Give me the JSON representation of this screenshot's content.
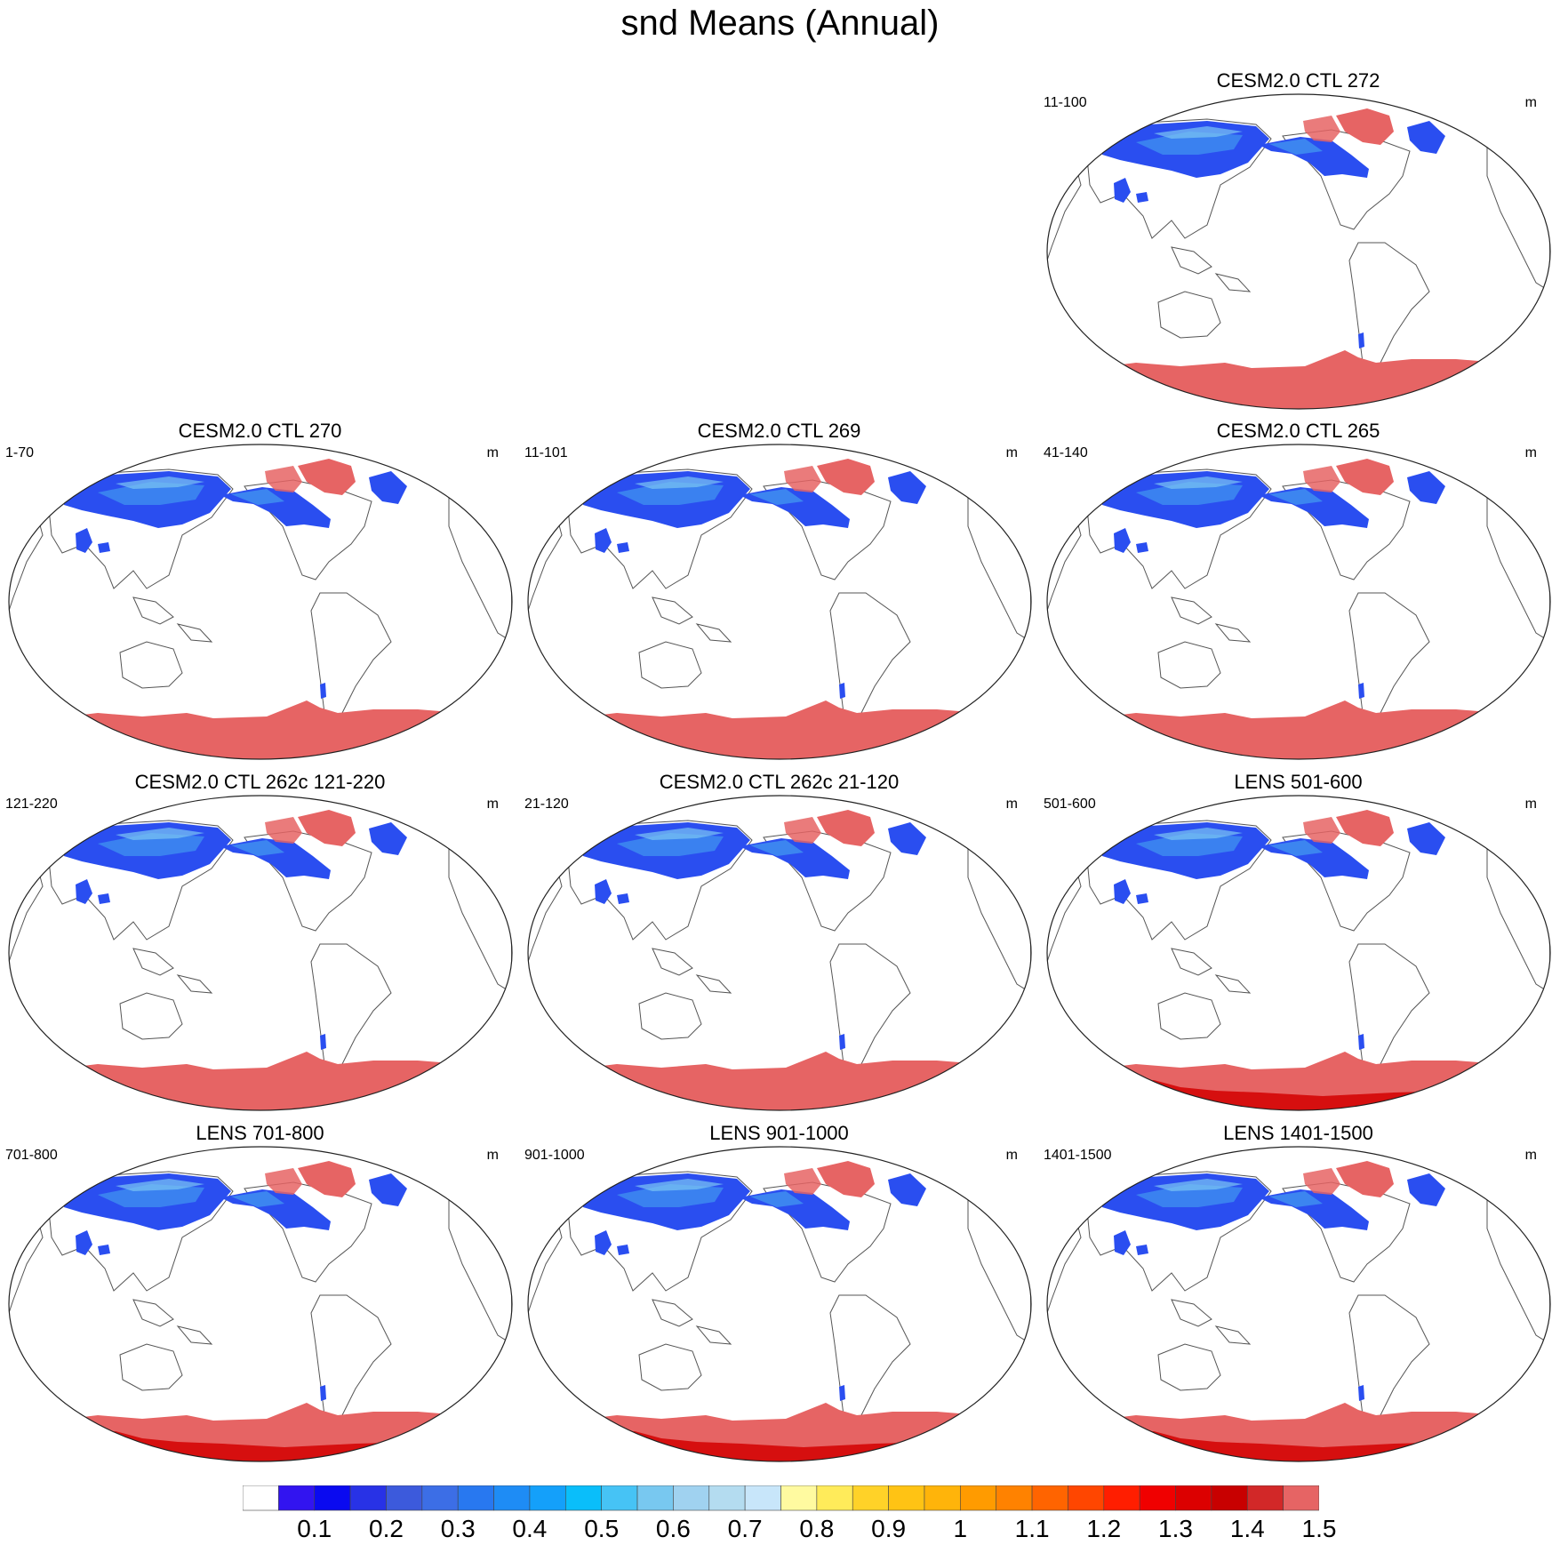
{
  "title": "snd Means (Annual)",
  "panels": [
    {
      "title": "CESM2.0 CTL 272",
      "left_label": "11-100",
      "right_label": "m",
      "antarctic": "uniform"
    },
    {
      "title": "CESM2.0 CTL 270",
      "left_label": "1-70",
      "right_label": "m",
      "antarctic": "uniform"
    },
    {
      "title": "CESM2.0 CTL 269",
      "left_label": "11-101",
      "right_label": "m",
      "antarctic": "uniform"
    },
    {
      "title": "CESM2.0 CTL 265",
      "left_label": "41-140",
      "right_label": "m",
      "antarctic": "uniform"
    },
    {
      "title": "CESM2.0 CTL 262c 121-220",
      "left_label": "121-220",
      "right_label": "m",
      "antarctic": "uniform"
    },
    {
      "title": "CESM2.0 CTL 262c 21-120",
      "left_label": "21-120",
      "right_label": "m",
      "antarctic": "uniform"
    },
    {
      "title": "LENS 501-600",
      "left_label": "501-600",
      "right_label": "m",
      "antarctic": "mixed"
    },
    {
      "title": "LENS 701-800",
      "left_label": "701-800",
      "right_label": "m",
      "antarctic": "mixed"
    },
    {
      "title": "LENS 901-1000",
      "left_label": "901-1000",
      "right_label": "m",
      "antarctic": "mixed"
    },
    {
      "title": "LENS 1401-1500",
      "left_label": "1401-1500",
      "right_label": "m",
      "antarctic": "mixed"
    }
  ],
  "colorbar": {
    "unit": "m",
    "labels": [
      "0.1",
      "0.2",
      "0.3",
      "0.4",
      "0.5",
      "0.6",
      "0.7",
      "0.8",
      "0.9",
      "1",
      "1.1",
      "1.2",
      "1.3",
      "1.4",
      "1.5"
    ],
    "colors": [
      "#ffffff",
      "#3214f0",
      "#0a0af0",
      "#2832e6",
      "#3c5adc",
      "#3c6ee6",
      "#2878f0",
      "#1e8cf5",
      "#14a0fa",
      "#0abefa",
      "#46c3f5",
      "#78c8f0",
      "#a0d2f0",
      "#b4dcf0",
      "#c8e6fa",
      "#fffaa0",
      "#ffeb5a",
      "#ffd228",
      "#ffc314",
      "#ffb40a",
      "#ff9b00",
      "#ff8200",
      "#ff6400",
      "#ff4600",
      "#ff1e00",
      "#f00000",
      "#dc0000",
      "#c80000",
      "#d22828",
      "#e66464"
    ]
  },
  "map_colors": {
    "snow_blue": "#2a4ef0",
    "snow_mid": "#3f8ff0",
    "snow_light": "#7cc6f2",
    "ice_max": "#e66464",
    "ice_dark": "#d20000",
    "coast": "#555555"
  }
}
